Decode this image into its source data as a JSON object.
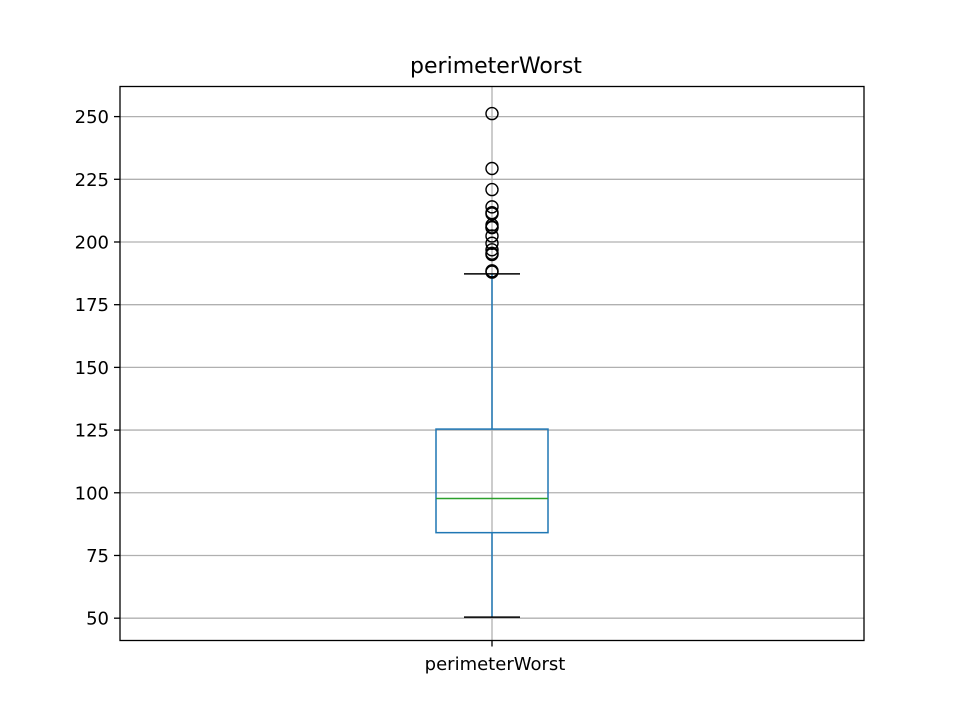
{
  "chart_data": {
    "type": "box",
    "title": "perimeterWorst",
    "xlabel": "",
    "ylabel": "",
    "categories": [
      "perimeterWorst"
    ],
    "ylim": [
      41.1,
      262.0
    ],
    "yticks": [
      50,
      75,
      100,
      125,
      150,
      175,
      200,
      225,
      250
    ],
    "grid": true,
    "boxes": [
      {
        "label": "perimeterWorst",
        "whisker_low": 50.4,
        "q1": 84.1,
        "median": 97.7,
        "q3": 125.4,
        "whisker_high": 187.3,
        "outliers": [
          251.2,
          229.3,
          220.9,
          214.0,
          211.7,
          211.2,
          206.8,
          206.0,
          205.7,
          202.4,
          199.5,
          196.9,
          195.5,
          195.0,
          188.5,
          188.0
        ]
      }
    ]
  },
  "colors": {
    "box": "#1f77b4",
    "median": "#2ca02c",
    "grid": "#b0b0b0",
    "axes": "#000000"
  }
}
